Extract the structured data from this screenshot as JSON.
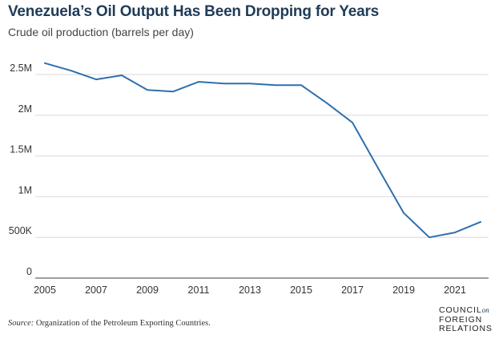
{
  "header": {
    "title": "Venezuela’s Oil Output Has Been Dropping for Years",
    "subtitle": "Crude oil production (barrels per day)"
  },
  "chart_data": {
    "type": "line",
    "title": "Venezuela’s Oil Output Has Been Dropping for Years",
    "subtitle": "Crude oil production (barrels per day)",
    "xlabel": "",
    "ylabel": "",
    "x": [
      2005,
      2006,
      2007,
      2008,
      2009,
      2010,
      2011,
      2012,
      2013,
      2014,
      2015,
      2016,
      2017,
      2018,
      2019,
      2020,
      2021,
      2022
    ],
    "series": [
      {
        "values": [
          2640000,
          2550000,
          2440000,
          2490000,
          2310000,
          2290000,
          2410000,
          2390000,
          2390000,
          2370000,
          2370000,
          2150000,
          1910000,
          1350000,
          800000,
          500000,
          560000,
          690000
        ]
      }
    ],
    "ylim": [
      0,
      2500000
    ],
    "xlim": [
      2005,
      2022
    ],
    "yticks": [
      0,
      500000,
      1000000,
      1500000,
      2000000,
      2500000
    ],
    "ytick_labels": [
      "0",
      "500K",
      "1M",
      "1.5M",
      "2M",
      "2.5M"
    ],
    "xticks": [
      2005,
      2007,
      2009,
      2011,
      2013,
      2015,
      2017,
      2019,
      2021
    ],
    "xtick_labels": [
      "2005",
      "2007",
      "2009",
      "2011",
      "2013",
      "2015",
      "2017",
      "2019",
      "2021"
    ],
    "grid": true,
    "line_color": "#2f6fad",
    "grid_color": "#d9d9d9"
  },
  "footer": {
    "source_label": "Source:",
    "source_text": " Organization of the Petroleum Exporting Countries.",
    "logo": {
      "line1": "COUNCIL",
      "line1_small": "on",
      "line2": "FOREIGN",
      "line3": "RELATIONS"
    }
  }
}
